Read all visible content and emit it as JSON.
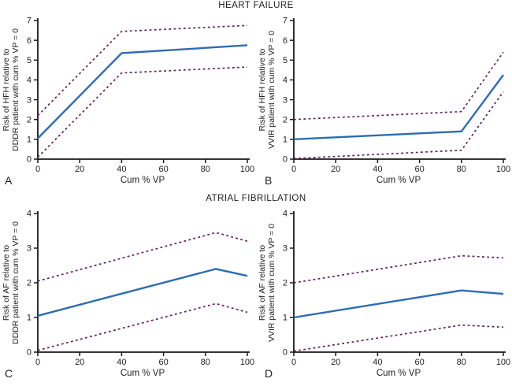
{
  "figure": {
    "background": "#ffffff",
    "text_color": "#1f1f1f",
    "axis_color": "#1a1a1a",
    "estimate_line_color": "#2b6cb5",
    "ci_line_color": "#5f2158"
  },
  "sections": [
    {
      "title": "HEART FAILURE"
    },
    {
      "title": "ATRIAL FIBRILLATION"
    }
  ],
  "chart_data": [
    {
      "panel_label": "A",
      "section": "HEART FAILURE",
      "type": "line",
      "x": [
        0,
        40,
        100
      ],
      "series": [
        {
          "name": "relative-risk-estimate",
          "line_style": "solid",
          "color": "#2b6cb5",
          "values": [
            1.05,
            5.35,
            5.75
          ]
        },
        {
          "name": "upper-confidence-limit",
          "line_style": "dashed",
          "color": "#5f2158",
          "values": [
            2.2,
            6.45,
            6.75
          ]
        },
        {
          "name": "lower-confidence-limit",
          "line_style": "dashed",
          "color": "#5f2158",
          "values": [
            0.1,
            4.35,
            4.65
          ]
        }
      ],
      "xlabel": "Cum % VP",
      "ylabel_lines": [
        "Risk of HFH relative to",
        "DDDR patient with cum % VP = 0"
      ],
      "xlim": [
        0,
        100
      ],
      "ylim": [
        0,
        7
      ],
      "xticks": [
        0,
        20,
        40,
        60,
        80,
        100
      ],
      "yticks": [
        0,
        1,
        2,
        3,
        4,
        5,
        6,
        7
      ],
      "grid": false,
      "legend": "none"
    },
    {
      "panel_label": "B",
      "section": "HEART FAILURE",
      "type": "line",
      "x": [
        0,
        80,
        100
      ],
      "series": [
        {
          "name": "relative-risk-estimate",
          "line_style": "solid",
          "color": "#2b6cb5",
          "values": [
            1.0,
            1.4,
            4.25
          ]
        },
        {
          "name": "upper-confidence-limit",
          "line_style": "dashed",
          "color": "#5f2158",
          "values": [
            2.0,
            2.4,
            5.4
          ]
        },
        {
          "name": "lower-confidence-limit",
          "line_style": "dashed",
          "color": "#5f2158",
          "values": [
            0.03,
            0.45,
            3.4
          ]
        }
      ],
      "xlabel": "Cum % VP",
      "ylabel_lines": [
        "Risk of HFH relative to",
        "VVIR patient with cum % VP = 0"
      ],
      "xlim": [
        0,
        100
      ],
      "ylim": [
        0,
        7
      ],
      "xticks": [
        0,
        20,
        40,
        60,
        80,
        100
      ],
      "yticks": [
        0,
        1,
        2,
        3,
        4,
        5,
        6,
        7
      ],
      "grid": false,
      "legend": "none"
    },
    {
      "panel_label": "C",
      "section": "ATRIAL FIBRILLATION",
      "type": "line",
      "x": [
        0,
        85,
        100
      ],
      "series": [
        {
          "name": "relative-risk-estimate",
          "line_style": "solid",
          "color": "#2b6cb5",
          "values": [
            1.05,
            2.4,
            2.2
          ]
        },
        {
          "name": "upper-confidence-limit",
          "line_style": "dashed",
          "color": "#5f2158",
          "values": [
            2.05,
            3.45,
            3.2
          ]
        },
        {
          "name": "lower-confidence-limit",
          "line_style": "dashed",
          "color": "#5f2158",
          "values": [
            0.05,
            1.4,
            1.15
          ]
        }
      ],
      "xlabel": "Cum % VP",
      "ylabel_lines": [
        "Risk of AF relative to",
        "DDDR patient with cum % VP = 0"
      ],
      "xlim": [
        0,
        100
      ],
      "ylim": [
        0,
        4
      ],
      "xticks": [
        0,
        20,
        40,
        60,
        80,
        100
      ],
      "yticks": [
        0,
        1,
        2,
        3,
        4
      ],
      "grid": false,
      "legend": "none"
    },
    {
      "panel_label": "D",
      "section": "ATRIAL FIBRILLATION",
      "type": "line",
      "x": [
        0,
        80,
        100
      ],
      "series": [
        {
          "name": "relative-risk-estimate",
          "line_style": "solid",
          "color": "#2b6cb5",
          "values": [
            1.0,
            1.78,
            1.68
          ]
        },
        {
          "name": "upper-confidence-limit",
          "line_style": "dashed",
          "color": "#5f2158",
          "values": [
            2.0,
            2.78,
            2.72
          ]
        },
        {
          "name": "lower-confidence-limit",
          "line_style": "dashed",
          "color": "#5f2158",
          "values": [
            0.03,
            0.78,
            0.72
          ]
        }
      ],
      "xlabel": "Cum % VP",
      "ylabel_lines": [
        "Risk of AF relative to",
        "VVIR patient with cum % VP = 0"
      ],
      "xlim": [
        0,
        100
      ],
      "ylim": [
        0,
        4
      ],
      "xticks": [
        0,
        20,
        40,
        60,
        80,
        100
      ],
      "yticks": [
        0,
        1,
        2,
        3,
        4
      ],
      "grid": false,
      "legend": "none"
    }
  ]
}
